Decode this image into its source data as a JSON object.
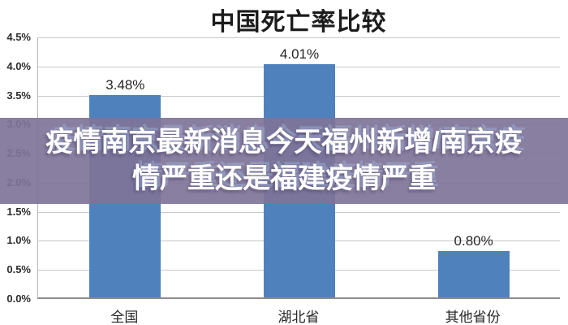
{
  "chart_data": {
    "type": "bar",
    "title": "中国死亡率比较",
    "categories": [
      "全国",
      "湖北省",
      "其他省份"
    ],
    "values": [
      3.48,
      4.01,
      0.8
    ],
    "value_labels": [
      "3.48%",
      "4.01%",
      "0.80%"
    ],
    "xlabel": "",
    "ylabel": "",
    "ylim": [
      0,
      4.5
    ],
    "yticks": [
      {
        "value": 0.0,
        "label": "0.0%"
      },
      {
        "value": 0.5,
        "label": "0.5%"
      },
      {
        "value": 1.0,
        "label": "1.0%"
      },
      {
        "value": 1.5,
        "label": "1.5%"
      },
      {
        "value": 2.0,
        "label": "2.0%"
      },
      {
        "value": 2.5,
        "label": "2.5%"
      },
      {
        "value": 3.0,
        "label": "3.0%"
      },
      {
        "value": 3.5,
        "label": "3.5%"
      },
      {
        "value": 4.0,
        "label": "4.0%"
      },
      {
        "value": 4.5,
        "label": "4.5%"
      }
    ],
    "grid": true,
    "legend_position": "none",
    "bar_color": "#4F81BD",
    "gridline_color": "#c8c8c8",
    "axis_color": "#8c8c8c"
  },
  "watermark": {
    "line1": "疫情南京最新消息今天福州新增/南京疫",
    "line2": "情严重还是福建疫情严重",
    "text_color": "#ffffff",
    "band_color": "rgba(127,116,152,0.92)"
  }
}
